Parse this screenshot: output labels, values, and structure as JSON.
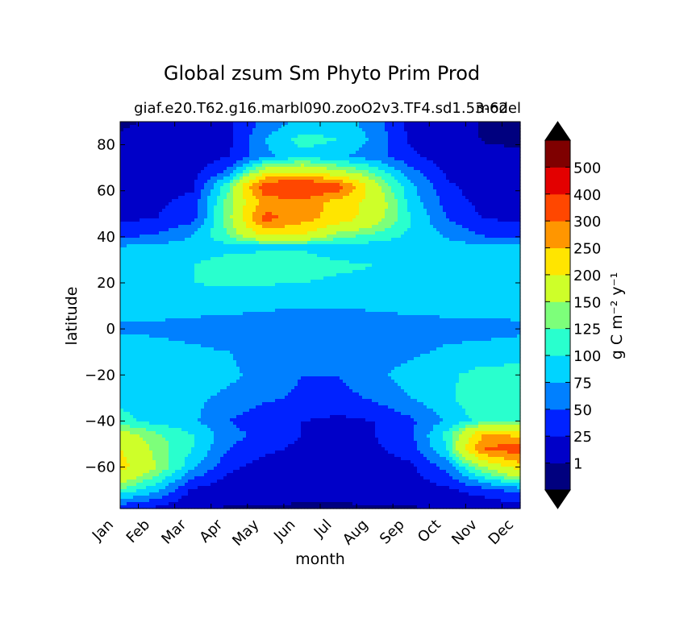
{
  "chart_data": {
    "type": "heatmap",
    "style": "filled-contour",
    "title": "Global zsum Sm Phyto Prim Prod",
    "subtitle": "giaf.e20.T62.g16.marbl090.zooO2v3.TF4.sd1.53-62",
    "subtitle_right": "model",
    "xlabel": "month",
    "ylabel": "latitude",
    "x_ticks": [
      "Jan",
      "Feb",
      "Mar",
      "Apr",
      "May",
      "Jun",
      "Jul",
      "Aug",
      "Sep",
      "Oct",
      "Nov",
      "Dec"
    ],
    "xlim": [
      0.5,
      11.5
    ],
    "y_ticks": [
      -60,
      -40,
      -20,
      0,
      20,
      40,
      60,
      80
    ],
    "ylim": [
      -78,
      90
    ],
    "colorbar": {
      "label": "g C m⁻² y⁻¹",
      "levels": [
        0,
        1,
        25,
        50,
        75,
        100,
        125,
        150,
        200,
        250,
        300,
        400,
        500,
        600
      ],
      "tick_labels": [
        "1",
        "25",
        "50",
        "75",
        "100",
        "125",
        "150",
        "200",
        "250",
        "300",
        "400",
        "500"
      ],
      "colors": [
        "#00007f",
        "#0000c8",
        "#0022ff",
        "#0080ff",
        "#00d4ff",
        "#29ffce",
        "#7dff7a",
        "#ceff29",
        "#ffe500",
        "#ff9600",
        "#ff4700",
        "#e30000",
        "#7f0000"
      ],
      "extend": "both",
      "under_color": "#000000",
      "over_color": "#000000"
    },
    "z_latitudes": [
      -78,
      -70,
      -60,
      -52,
      -46,
      -40,
      -30,
      -20,
      -10,
      0,
      10,
      20,
      28,
      36,
      41,
      48,
      55,
      62,
      68,
      75,
      82,
      90
    ],
    "z_values": [
      [
        30,
        20,
        0.5,
        0,
        0,
        0,
        0,
        0,
        0,
        0,
        1,
        12
      ],
      [
        120,
        80,
        20,
        8,
        6,
        3,
        3,
        5,
        10,
        20,
        40,
        60
      ],
      [
        220,
        150,
        80,
        30,
        15,
        10,
        8,
        10,
        20,
        60,
        150,
        220
      ],
      [
        200,
        140,
        100,
        50,
        30,
        20,
        15,
        20,
        40,
        100,
        300,
        340
      ],
      [
        170,
        130,
        100,
        60,
        40,
        25,
        20,
        25,
        45,
        110,
        250,
        240
      ],
      [
        110,
        90,
        80,
        50,
        30,
        25,
        20,
        25,
        45,
        80,
        110,
        110
      ],
      [
        90,
        90,
        80,
        70,
        55,
        45,
        40,
        55,
        75,
        95,
        120,
        120
      ],
      [
        95,
        90,
        85,
        80,
        65,
        50,
        50,
        70,
        85,
        95,
        110,
        110
      ],
      [
        90,
        85,
        80,
        75,
        65,
        55,
        55,
        60,
        70,
        80,
        85,
        88
      ],
      [
        70,
        70,
        65,
        60,
        55,
        50,
        50,
        55,
        60,
        65,
        65,
        70
      ],
      [
        85,
        85,
        85,
        85,
        80,
        80,
        80,
        80,
        85,
        85,
        85,
        85
      ],
      [
        95,
        98,
        100,
        104,
        102,
        100,
        98,
        98,
        100,
        98,
        96,
        95
      ],
      [
        90,
        95,
        100,
        110,
        112,
        106,
        102,
        100,
        100,
        98,
        95,
        92
      ],
      [
        75,
        80,
        85,
        92,
        95,
        98,
        92,
        90,
        88,
        85,
        80,
        78
      ],
      [
        40,
        50,
        75,
        130,
        210,
        200,
        140,
        120,
        95,
        70,
        45,
        40
      ],
      [
        20,
        25,
        40,
        140,
        320,
        270,
        230,
        170,
        100,
        50,
        25,
        20
      ],
      [
        15,
        20,
        35,
        140,
        270,
        280,
        230,
        180,
        90,
        40,
        15,
        12
      ],
      [
        10,
        12,
        20,
        120,
        350,
        380,
        330,
        160,
        80,
        30,
        10,
        8
      ],
      [
        8,
        10,
        15,
        60,
        180,
        200,
        160,
        120,
        60,
        20,
        6,
        5
      ],
      [
        6,
        6,
        8,
        25,
        70,
        90,
        80,
        60,
        30,
        10,
        3,
        2
      ],
      [
        2,
        3,
        5,
        20,
        75,
        110,
        100,
        70,
        20,
        6,
        0.5,
        0
      ],
      [
        0,
        2,
        5,
        20,
        60,
        80,
        90,
        60,
        15,
        5,
        0,
        0
      ]
    ]
  }
}
